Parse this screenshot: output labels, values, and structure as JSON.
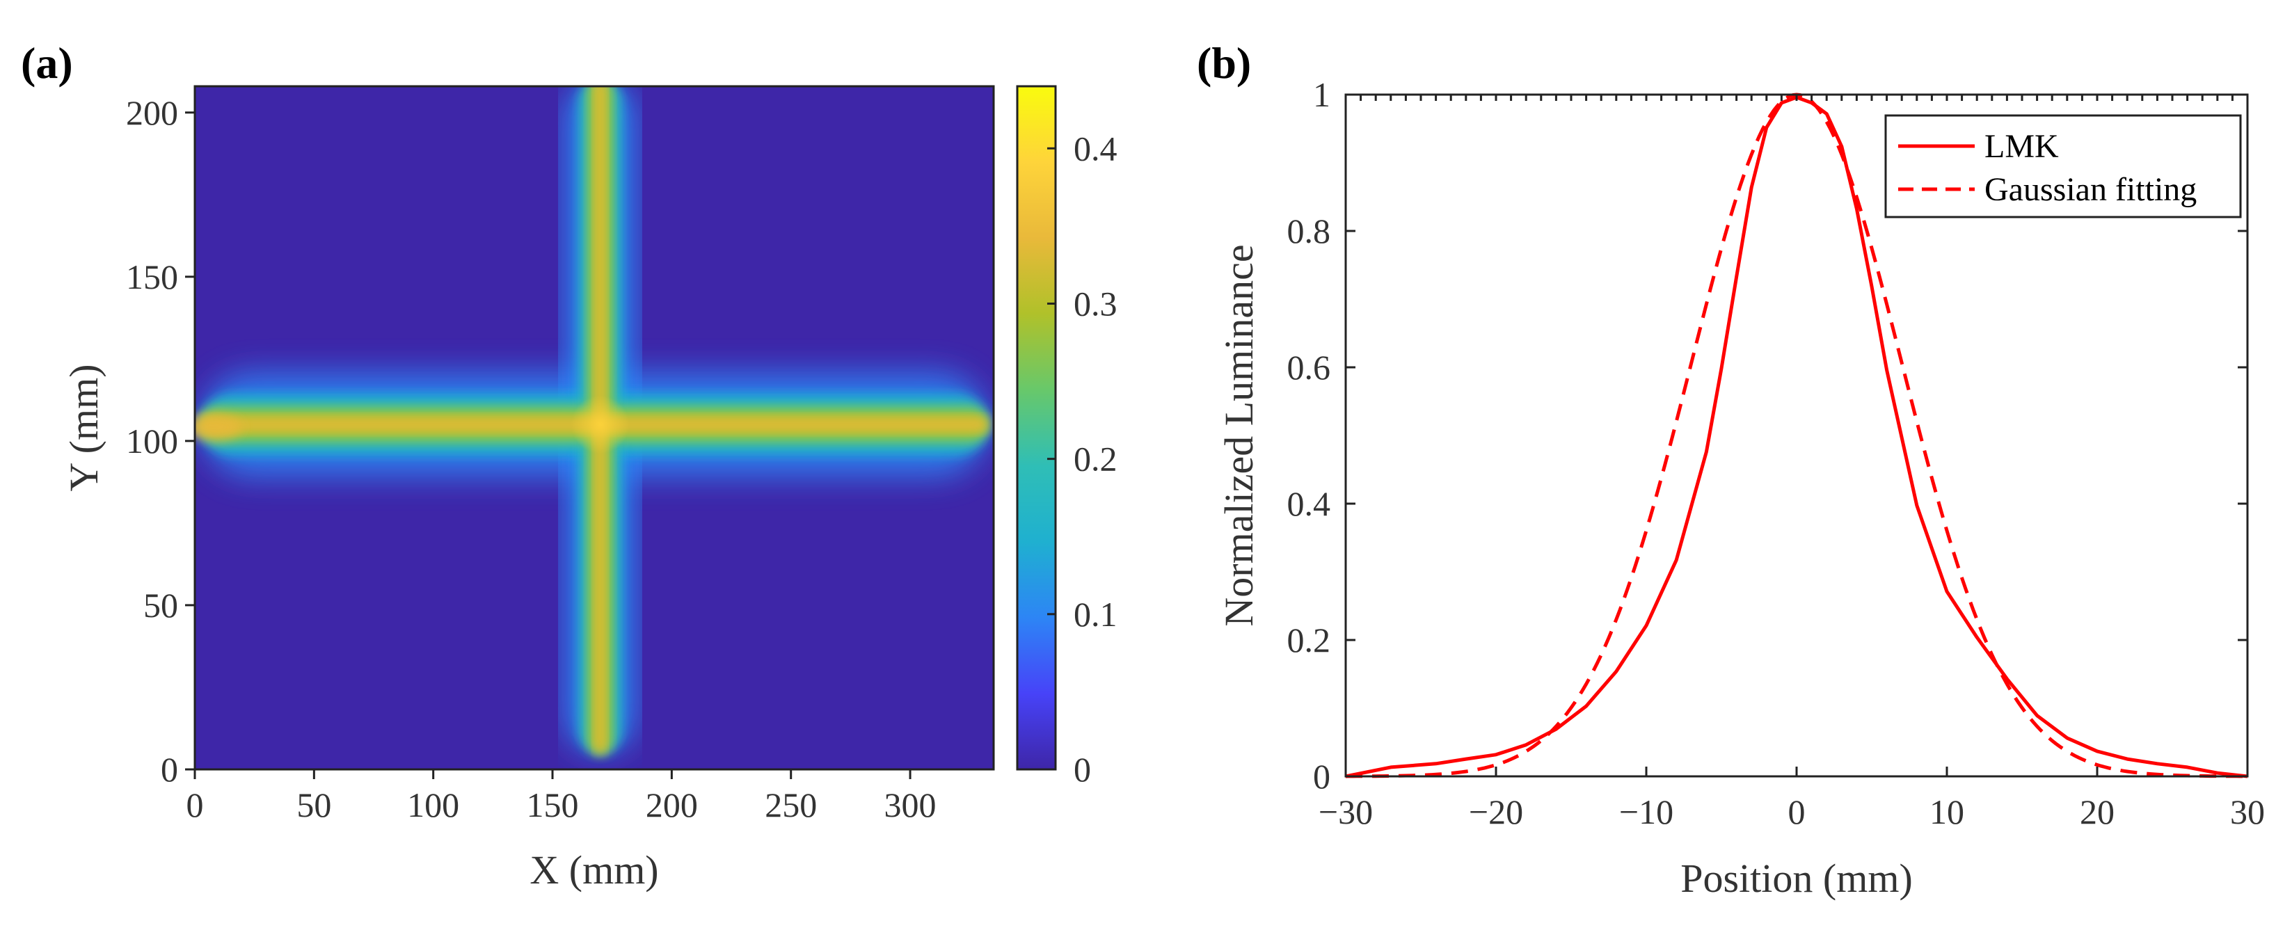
{
  "chart_data": [
    {
      "panel": "(a)",
      "type": "heatmap",
      "xlabel": "X (mm)",
      "ylabel": "Y (mm)",
      "xlim": [
        0,
        335
      ],
      "ylim": [
        0,
        208
      ],
      "xticks": [
        0,
        50,
        100,
        150,
        200,
        250,
        300
      ],
      "yticks": [
        0,
        50,
        100,
        150,
        200
      ],
      "colorbar": {
        "range": [
          0,
          0.44
        ],
        "ticks": [
          0,
          0.1,
          0.2,
          0.3,
          0.4
        ],
        "colormap": "parula",
        "stops": [
          "#3e26a8",
          "#4743f8",
          "#2d85f5",
          "#1fb0d0",
          "#2fbeb6",
          "#68c86a",
          "#b0c12a",
          "#e9b93a",
          "#fed43a",
          "#f9fb0e"
        ]
      },
      "features": {
        "horizontal_bar": {
          "y_mm": 105,
          "x_range_mm": [
            0,
            335
          ],
          "width_mm": 10,
          "peak_value": 0.37
        },
        "vertical_bar": {
          "x_mm": 170,
          "y_range_mm": [
            5,
            208
          ],
          "width_mm": 10,
          "peak_value": 0.35
        },
        "intersection": {
          "x_mm": 170,
          "y_mm": 105,
          "value": 0.4
        }
      },
      "grid": false
    },
    {
      "panel": "(b)",
      "type": "line",
      "xlabel": "Position (mm)",
      "ylabel": "Normalized Luminance",
      "xlim": [
        -30,
        30
      ],
      "ylim": [
        0,
        1
      ],
      "xticks": [
        -30,
        -20,
        -10,
        0,
        10,
        20,
        30
      ],
      "xtick_labels": [
        "−30",
        "−20",
        "−10",
        "0",
        "10",
        "20",
        "30"
      ],
      "yticks": [
        0,
        0.2,
        0.4,
        0.6,
        0.8,
        1
      ],
      "ytick_labels": [
        "0",
        "0.2",
        "0.4",
        "0.6",
        "0.8",
        "1"
      ],
      "legend_position": "top-right",
      "grid": false,
      "series": [
        {
          "name": "LMK",
          "style": "solid",
          "color": "#ff0000",
          "x": [
            -30,
            -27,
            -24,
            -22,
            -20,
            -18,
            -16,
            -14,
            -12,
            -10,
            -8,
            -6,
            -5,
            -4,
            -3,
            -2,
            -1,
            0,
            1,
            2,
            3,
            4,
            5,
            6,
            8,
            10,
            12,
            14,
            16,
            18,
            20,
            22,
            24,
            26,
            28,
            30
          ],
          "y": [
            0.0,
            0.01,
            0.015,
            0.025,
            0.035,
            0.05,
            0.07,
            0.1,
            0.15,
            0.22,
            0.32,
            0.48,
            0.6,
            0.73,
            0.86,
            0.95,
            0.99,
            1.0,
            0.99,
            0.97,
            0.92,
            0.83,
            0.72,
            0.6,
            0.4,
            0.27,
            0.2,
            0.14,
            0.09,
            0.06,
            0.04,
            0.025,
            0.015,
            0.01,
            0.005,
            0.0
          ]
        },
        {
          "name": "Gaussian fitting",
          "style": "dashed",
          "color": "#ff0000",
          "mu": 0,
          "sigma": 7.0,
          "amplitude": 1.0
        }
      ]
    }
  ]
}
